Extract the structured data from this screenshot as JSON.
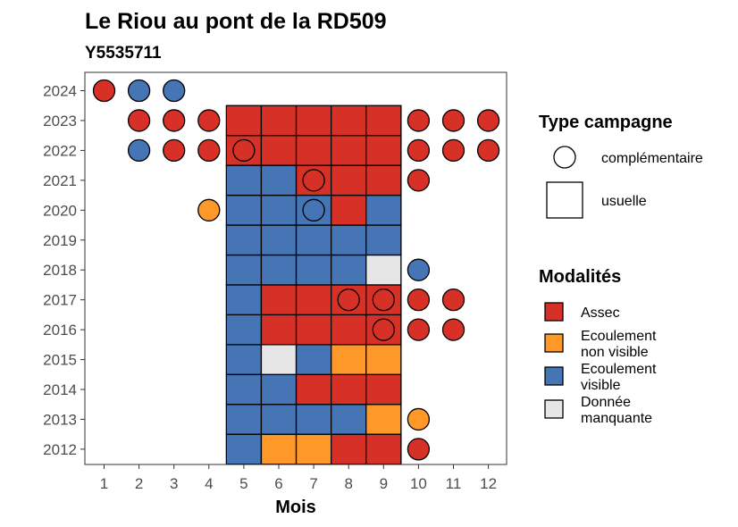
{
  "chart_data": {
    "type": "heatmap",
    "title": "Le Riou au pont de la RD509",
    "subtitle": "Y5535711",
    "xlabel": "Mois",
    "ylabel": "",
    "x_categories": [
      "1",
      "2",
      "3",
      "4",
      "5",
      "6",
      "7",
      "8",
      "9",
      "10",
      "11",
      "12"
    ],
    "y_categories": [
      "2012",
      "2013",
      "2014",
      "2015",
      "2016",
      "2017",
      "2018",
      "2019",
      "2020",
      "2021",
      "2022",
      "2023",
      "2024"
    ],
    "colors": {
      "Assec": "#d73027",
      "Ecoulement non visible": "#fe9929",
      "Ecoulement visible": "#4575b4",
      "Donnée manquante": "#e6e6e6"
    },
    "legend_type": {
      "title": "Type campagne",
      "items": [
        {
          "key": "complementaire",
          "label": "complémentaire",
          "shape": "circle"
        },
        {
          "key": "usuelle",
          "label": "usuelle",
          "shape": "square"
        }
      ]
    },
    "legend_modalites": {
      "title": "Modalités",
      "items": [
        {
          "key": "Assec",
          "lines": [
            "Assec"
          ]
        },
        {
          "key": "Ecoulement non visible",
          "lines": [
            "Ecoulement",
            "non visible"
          ]
        },
        {
          "key": "Ecoulement visible",
          "lines": [
            "Ecoulement",
            "visible"
          ]
        },
        {
          "key": "Donnée manquante",
          "lines": [
            "Donnée",
            "manquante"
          ]
        }
      ]
    },
    "usuelle": [
      {
        "year": "2012",
        "months": {
          "5": "Ecoulement visible",
          "6": "Ecoulement non visible",
          "7": "Ecoulement non visible",
          "8": "Assec",
          "9": "Assec"
        }
      },
      {
        "year": "2013",
        "months": {
          "5": "Ecoulement visible",
          "6": "Ecoulement visible",
          "7": "Ecoulement visible",
          "8": "Ecoulement visible",
          "9": "Ecoulement non visible"
        }
      },
      {
        "year": "2014",
        "months": {
          "5": "Ecoulement visible",
          "6": "Ecoulement visible",
          "7": "Assec",
          "8": "Assec",
          "9": "Assec"
        }
      },
      {
        "year": "2015",
        "months": {
          "5": "Ecoulement visible",
          "6": "Donnée manquante",
          "7": "Ecoulement visible",
          "8": "Ecoulement non visible",
          "9": "Ecoulement non visible"
        }
      },
      {
        "year": "2016",
        "months": {
          "5": "Ecoulement visible",
          "6": "Assec",
          "7": "Assec",
          "8": "Assec",
          "9": "Assec"
        }
      },
      {
        "year": "2017",
        "months": {
          "5": "Ecoulement visible",
          "6": "Assec",
          "7": "Assec",
          "8": "Assec",
          "9": "Assec"
        }
      },
      {
        "year": "2018",
        "months": {
          "5": "Ecoulement visible",
          "6": "Ecoulement visible",
          "7": "Ecoulement visible",
          "8": "Ecoulement visible",
          "9": "Donnée manquante"
        }
      },
      {
        "year": "2019",
        "months": {
          "5": "Ecoulement visible",
          "6": "Ecoulement visible",
          "7": "Ecoulement visible",
          "8": "Ecoulement visible",
          "9": "Ecoulement visible"
        }
      },
      {
        "year": "2020",
        "months": {
          "5": "Ecoulement visible",
          "6": "Ecoulement visible",
          "7": "Ecoulement visible",
          "8": "Assec",
          "9": "Ecoulement visible"
        }
      },
      {
        "year": "2021",
        "months": {
          "5": "Ecoulement visible",
          "6": "Ecoulement visible",
          "7": "Assec",
          "8": "Assec",
          "9": "Assec"
        }
      },
      {
        "year": "2022",
        "months": {
          "5": "Assec",
          "6": "Assec",
          "7": "Assec",
          "8": "Assec",
          "9": "Assec"
        }
      },
      {
        "year": "2023",
        "months": {
          "5": "Assec",
          "6": "Assec",
          "7": "Assec",
          "8": "Assec",
          "9": "Assec"
        }
      }
    ],
    "complementaire": [
      {
        "year": "2012",
        "month": "10",
        "value": "Assec"
      },
      {
        "year": "2013",
        "month": "10",
        "value": "Ecoulement non visible"
      },
      {
        "year": "2016",
        "month": "9",
        "value": "Assec"
      },
      {
        "year": "2016",
        "month": "10",
        "value": "Assec"
      },
      {
        "year": "2016",
        "month": "11",
        "value": "Assec"
      },
      {
        "year": "2017",
        "month": "8",
        "value": "Assec"
      },
      {
        "year": "2017",
        "month": "9",
        "value": "Assec"
      },
      {
        "year": "2017",
        "month": "10",
        "value": "Assec"
      },
      {
        "year": "2017",
        "month": "11",
        "value": "Assec"
      },
      {
        "year": "2018",
        "month": "10",
        "value": "Ecoulement visible"
      },
      {
        "year": "2020",
        "month": "4",
        "value": "Ecoulement non visible"
      },
      {
        "year": "2020",
        "month": "7",
        "value": "Ecoulement visible"
      },
      {
        "year": "2021",
        "month": "7",
        "value": "Assec"
      },
      {
        "year": "2021",
        "month": "10",
        "value": "Assec"
      },
      {
        "year": "2022",
        "month": "2",
        "value": "Ecoulement visible"
      },
      {
        "year": "2022",
        "month": "3",
        "value": "Assec"
      },
      {
        "year": "2022",
        "month": "4",
        "value": "Assec"
      },
      {
        "year": "2022",
        "month": "5",
        "value": "Assec"
      },
      {
        "year": "2022",
        "month": "10",
        "value": "Assec"
      },
      {
        "year": "2022",
        "month": "11",
        "value": "Assec"
      },
      {
        "year": "2022",
        "month": "12",
        "value": "Assec"
      },
      {
        "year": "2023",
        "month": "2",
        "value": "Assec"
      },
      {
        "year": "2023",
        "month": "3",
        "value": "Assec"
      },
      {
        "year": "2023",
        "month": "4",
        "value": "Assec"
      },
      {
        "year": "2023",
        "month": "10",
        "value": "Assec"
      },
      {
        "year": "2023",
        "month": "11",
        "value": "Assec"
      },
      {
        "year": "2023",
        "month": "12",
        "value": "Assec"
      },
      {
        "year": "2024",
        "month": "1",
        "value": "Assec"
      },
      {
        "year": "2024",
        "month": "2",
        "value": "Ecoulement visible"
      },
      {
        "year": "2024",
        "month": "3",
        "value": "Ecoulement visible"
      }
    ]
  }
}
